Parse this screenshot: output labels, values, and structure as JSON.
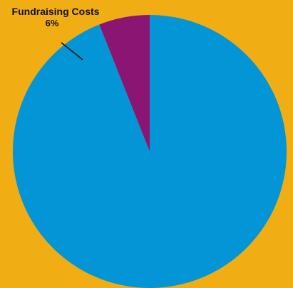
{
  "chart_data": {
    "type": "pie",
    "slices": [
      {
        "label": "",
        "percent": 94,
        "color": "#0395d6"
      },
      {
        "label": "Fundraising Costs",
        "display_value": "6%",
        "percent": 6,
        "color": "#8a1573"
      }
    ],
    "start_angle_deg": 0
  },
  "background_color": "#f0ad14"
}
